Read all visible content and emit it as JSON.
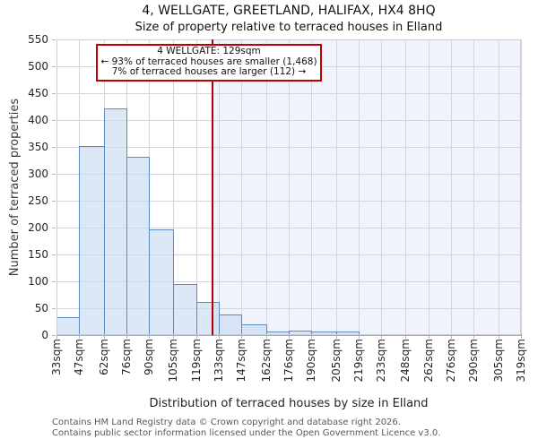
{
  "page": {
    "title": "4, WELLGATE, GREETLAND, HALIFAX, HX4 8HQ",
    "subtitle": "Size of property relative to terraced houses in Elland"
  },
  "annotation": {
    "line1": "4 WELLGATE: 129sqm",
    "line2": "← 93% of terraced houses are smaller (1,468)",
    "line3": "7% of terraced houses are larger (112) →"
  },
  "footer": {
    "line1": "Contains HM Land Registry data © Crown copyright and database right 2026.",
    "line2": "Contains public sector information licensed under the Open Government Licence v3.0."
  },
  "chart_data": {
    "type": "bar",
    "title": "4, WELLGATE, GREETLAND, HALIFAX, HX4 8HQ",
    "subtitle": "Size of property relative to terraced houses in Elland",
    "xlabel": "Distribution of terraced houses by size in Elland",
    "ylabel": "Number of terraced properties",
    "x_tick_labels": [
      "33sqm",
      "47sqm",
      "62sqm",
      "76sqm",
      "90sqm",
      "105sqm",
      "119sqm",
      "133sqm",
      "147sqm",
      "162sqm",
      "176sqm",
      "190sqm",
      "205sqm",
      "219sqm",
      "233sqm",
      "248sqm",
      "262sqm",
      "276sqm",
      "290sqm",
      "305sqm",
      "319sqm"
    ],
    "bin_edges_sqm": [
      33,
      47,
      62,
      76,
      90,
      105,
      119,
      133,
      147,
      162,
      176,
      190,
      205,
      219,
      233,
      248,
      262,
      276,
      290,
      305,
      319
    ],
    "values": [
      34,
      352,
      421,
      331,
      196,
      95,
      61,
      38,
      20,
      6,
      9,
      6,
      7,
      0,
      2,
      2,
      2,
      2,
      0,
      2
    ],
    "y_ticks": [
      0,
      50,
      100,
      150,
      200,
      250,
      300,
      350,
      400,
      450,
      500,
      550
    ],
    "ylim": [
      0,
      550
    ],
    "grid": true,
    "legend": "none",
    "marker_line": {
      "value_sqm": 129,
      "label": "4 WELLGATE: 129sqm"
    },
    "smaller_pct": 93,
    "smaller_count": 1468,
    "larger_pct": 7,
    "larger_count": 112,
    "colors": {
      "bar_fill": "rgba(200,218,241,0.62)",
      "bar_border": "#5b8ac6",
      "grid": "#d4d5db",
      "tick": "#b6b7bd",
      "marker": "#b20000",
      "annotation_border": "#c00000",
      "shade": "rgba(226,233,248,0.55)"
    }
  }
}
